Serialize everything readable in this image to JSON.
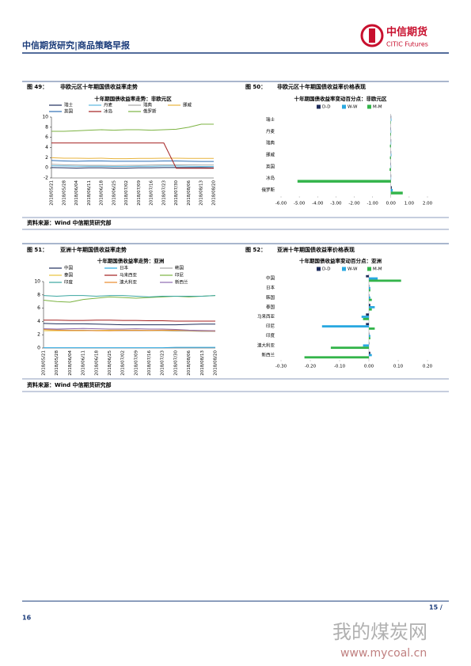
{
  "header": {
    "title": "中信期货研究|商品策略早报",
    "logo_cn": "中信期货",
    "logo_en": "CITIC Futures"
  },
  "figures": [
    {
      "label": "图 49：",
      "caption": "非欧元区十年期国债收益率走势"
    },
    {
      "label": "图 50：",
      "caption": "非欧元区十年期国债收益率价格表现"
    },
    {
      "label": "图 51：",
      "caption": "亚洲十年期国债收益率走势"
    },
    {
      "label": "图 52：",
      "caption": "亚洲十年期国债收益率价格表现"
    }
  ],
  "sources": [
    "资料来源：Wind 中信期货研究部",
    "资料来源：Wind 中信期货研究部"
  ],
  "footer": {
    "page_left": "16",
    "page_right": "15 /"
  },
  "watermark": {
    "cn": "我的煤炭网",
    "url": "www.mycoal.cn"
  },
  "chart_data": [
    {
      "type": "line",
      "title": "十年期国债收益率走势：非欧元区",
      "categories": [
        "2018/05/21",
        "2018/05/28",
        "2018/06/04",
        "2018/06/11",
        "2018/06/18",
        "2018/06/25",
        "2018/07/02",
        "2018/07/09",
        "2018/07/16",
        "2018/07/23",
        "2018/07/30",
        "2018/08/06",
        "2018/08/13",
        "2018/08/20"
      ],
      "ylim": [
        -2,
        10
      ],
      "yticks": [
        -2,
        0,
        2,
        4,
        6,
        8,
        10
      ],
      "series": [
        {
          "name": "瑞士",
          "color": "#1f2d5c",
          "values": [
            0.05,
            0.0,
            -0.05,
            0.0,
            0.0,
            -0.05,
            -0.05,
            0.0,
            0.0,
            0.05,
            0.05,
            0.05,
            0.05,
            0.0
          ]
        },
        {
          "name": "丹麦",
          "color": "#5bb8e0",
          "values": [
            0.4,
            0.35,
            0.3,
            0.3,
            0.3,
            0.25,
            0.25,
            0.3,
            0.3,
            0.35,
            0.35,
            0.3,
            0.25,
            0.25
          ]
        },
        {
          "name": "瑞典",
          "color": "#a6a6a6",
          "values": [
            0.7,
            0.6,
            0.55,
            0.5,
            0.5,
            0.45,
            0.5,
            0.5,
            0.55,
            0.6,
            0.6,
            0.6,
            0.55,
            0.55
          ]
        },
        {
          "name": "挪威",
          "color": "#e8b33c",
          "values": [
            2.0,
            1.9,
            1.9,
            1.85,
            1.9,
            1.8,
            1.8,
            1.85,
            1.85,
            1.9,
            1.9,
            1.85,
            1.85,
            1.85
          ]
        },
        {
          "name": "英国",
          "color": "#2f6fb5",
          "values": [
            1.45,
            1.35,
            1.3,
            1.35,
            1.35,
            1.3,
            1.3,
            1.3,
            1.3,
            1.35,
            1.35,
            1.3,
            1.25,
            1.25
          ]
        },
        {
          "name": "冰岛",
          "color": "#a31f1f",
          "values": [
            4.9,
            4.9,
            4.9,
            4.9,
            4.9,
            4.9,
            4.9,
            4.9,
            4.9,
            4.9,
            -0.1,
            -0.1,
            -0.1,
            -0.1
          ]
        },
        {
          "name": "俄罗斯",
          "color": "#7cb342",
          "values": [
            7.2,
            7.2,
            7.3,
            7.4,
            7.5,
            7.4,
            7.5,
            7.5,
            7.4,
            7.5,
            7.6,
            8.0,
            8.6,
            8.6
          ]
        }
      ]
    },
    {
      "type": "hbar",
      "title": "十年期国债收益率变动百分点：非欧元区",
      "categories": [
        "瑞士",
        "丹麦",
        "瑞典",
        "挪威",
        "英国",
        "冰岛",
        "俄罗斯"
      ],
      "xlim": [
        -6,
        2
      ],
      "xticks": [
        {
          "value": -6,
          "label": "-6.00"
        },
        {
          "value": -5,
          "label": "-5.00"
        },
        {
          "value": -4,
          "label": "-4.00"
        },
        {
          "value": -3,
          "label": "-3.00"
        },
        {
          "value": -2,
          "label": "-2.00"
        },
        {
          "value": -1,
          "label": "-1.00"
        },
        {
          "value": 0,
          "label": "0.00"
        },
        {
          "value": 1,
          "label": "1.00"
        },
        {
          "value": 2,
          "label": "2.00"
        }
      ],
      "series": [
        {
          "name": "D-D",
          "color": "#1f2d5c",
          "values": [
            0.02,
            -0.01,
            0.0,
            0.01,
            -0.01,
            0.0,
            0.05
          ]
        },
        {
          "name": "W-W",
          "color": "#29a8e0",
          "values": [
            0.03,
            0.02,
            0.02,
            0.03,
            0.0,
            0.0,
            0.1
          ]
        },
        {
          "name": "M-M",
          "color": "#33b44a",
          "values": [
            -0.02,
            -0.03,
            -0.05,
            -0.05,
            -0.07,
            -5.1,
            0.65
          ]
        }
      ]
    },
    {
      "type": "line",
      "title": "十年期国债收益率走势：亚洲",
      "categories": [
        "2018/05/21",
        "2018/05/28",
        "2018/06/04",
        "2018/06/11",
        "2018/06/18",
        "2018/06/25",
        "2018/07/02",
        "2018/07/09",
        "2018/07/16",
        "2018/07/23",
        "2018/07/30",
        "2018/08/06",
        "2018/08/13",
        "2018/08/20"
      ],
      "ylim": [
        0,
        10
      ],
      "yticks": [
        0,
        2,
        4,
        6,
        8,
        10
      ],
      "series": [
        {
          "name": "中国",
          "color": "#1f2d5c",
          "values": [
            3.7,
            3.65,
            3.65,
            3.65,
            3.6,
            3.55,
            3.5,
            3.5,
            3.5,
            3.5,
            3.5,
            3.55,
            3.6,
            3.6
          ]
        },
        {
          "name": "日本",
          "color": "#29a8e0",
          "values": [
            0.05,
            0.05,
            0.05,
            0.05,
            0.05,
            0.05,
            0.05,
            0.05,
            0.05,
            0.05,
            0.1,
            0.1,
            0.1,
            0.1
          ]
        },
        {
          "name": "韩国",
          "color": "#a6a6a6",
          "values": [
            2.8,
            2.75,
            2.7,
            2.7,
            2.65,
            2.6,
            2.6,
            2.6,
            2.6,
            2.6,
            2.55,
            2.55,
            2.5,
            2.5
          ]
        },
        {
          "name": "泰国",
          "color": "#e8c33c",
          "values": [
            2.6,
            2.6,
            2.6,
            2.6,
            2.65,
            2.7,
            2.7,
            2.7,
            2.65,
            2.65,
            2.65,
            2.65,
            2.6,
            2.6
          ]
        },
        {
          "name": "马来西亚",
          "color": "#a31f1f",
          "values": [
            4.2,
            4.2,
            4.15,
            4.15,
            4.2,
            4.2,
            4.15,
            4.15,
            4.1,
            4.1,
            4.05,
            4.05,
            4.05,
            4.05
          ]
        },
        {
          "name": "印尼",
          "color": "#7cb342",
          "values": [
            7.2,
            7.0,
            6.9,
            7.3,
            7.5,
            7.7,
            7.6,
            7.5,
            7.6,
            7.7,
            7.8,
            7.7,
            7.8,
            7.9
          ]
        },
        {
          "name": "印度",
          "color": "#3aa6a0",
          "values": [
            7.9,
            7.8,
            7.9,
            7.9,
            7.8,
            7.9,
            7.9,
            7.8,
            7.7,
            7.8,
            7.8,
            7.8,
            7.8,
            7.9
          ]
        },
        {
          "name": "澳大利亚",
          "color": "#e88a2c",
          "values": [
            2.8,
            2.7,
            2.65,
            2.65,
            2.6,
            2.6,
            2.65,
            2.65,
            2.65,
            2.7,
            2.7,
            2.65,
            2.6,
            2.55
          ]
        },
        {
          "name": "新西兰",
          "color": "#8e6bb0",
          "values": [
            2.9,
            2.85,
            2.9,
            2.95,
            2.9,
            2.85,
            2.85,
            2.9,
            2.85,
            2.85,
            2.8,
            2.7,
            2.65,
            2.6
          ]
        }
      ]
    },
    {
      "type": "hbar",
      "title": "十年期国债收益率变动百分点：亚洲",
      "categories": [
        "中国",
        "日本",
        "韩国",
        "泰国",
        "马来西亚",
        "印尼",
        "印度",
        "澳大利亚",
        "新西兰"
      ],
      "xlim": [
        -0.3,
        0.2
      ],
      "xticks": [
        {
          "value": -0.3,
          "label": "-0.30"
        },
        {
          "value": -0.2,
          "label": "-0.20"
        },
        {
          "value": -0.1,
          "label": "-0.10"
        },
        {
          "value": 0,
          "label": "0.00"
        },
        {
          "value": 0.1,
          "label": "0.10"
        },
        {
          "value": 0.2,
          "label": "0.20"
        }
      ],
      "series": [
        {
          "name": "D-D",
          "color": "#1f2d5c",
          "values": [
            -0.01,
            0.0,
            0.0,
            0.005,
            -0.01,
            -0.01,
            0.0,
            0.0,
            0.005
          ]
        },
        {
          "name": "W-W",
          "color": "#29a8e0",
          "values": [
            0.03,
            0.005,
            0.005,
            0.02,
            -0.025,
            -0.16,
            0.005,
            -0.02,
            0.01
          ]
        },
        {
          "name": "M-M",
          "color": "#33b44a",
          "values": [
            0.11,
            0.005,
            0.01,
            0.01,
            -0.02,
            0.02,
            0.005,
            -0.13,
            -0.22
          ]
        }
      ]
    }
  ]
}
